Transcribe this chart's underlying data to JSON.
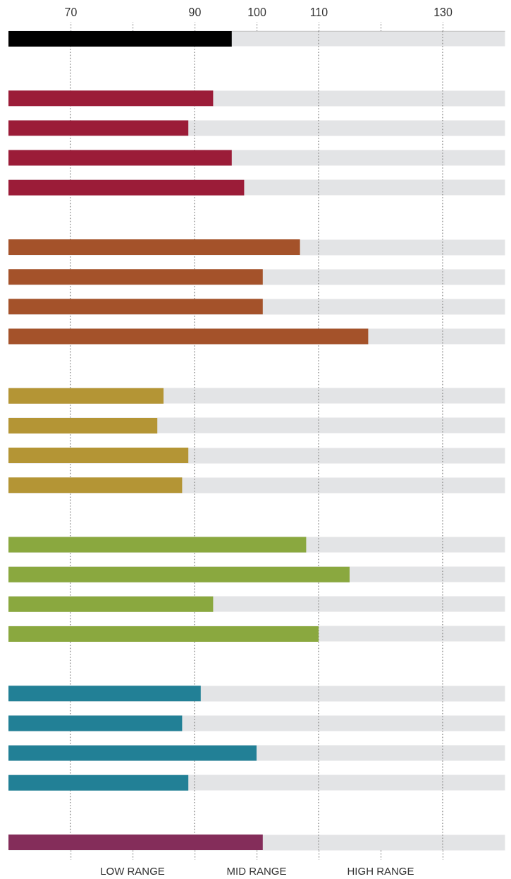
{
  "chart_data": {
    "type": "bar",
    "orientation": "horizontal",
    "grid": "y",
    "categories": [
      null,
      null,
      null,
      null,
      null,
      null,
      null,
      null,
      null,
      null,
      null,
      null,
      null,
      null,
      null,
      null,
      null,
      null,
      null,
      null,
      null,
      null,
      null,
      null,
      null,
      null,
      null,
      null
    ],
    "values": [
      96,
      null,
      93,
      89,
      96,
      98,
      null,
      107,
      101,
      101,
      118,
      null,
      85,
      84,
      89,
      88,
      null,
      108,
      115,
      93,
      110,
      null,
      91,
      88,
      100,
      89,
      null,
      101
    ],
    "colors": [
      "#000000",
      null,
      "#9b1c38",
      "#9b1c38",
      "#9b1c38",
      "#9b1c38",
      null,
      "#a4522a",
      "#a4522a",
      "#a4522a",
      "#a4522a",
      null,
      "#b49535",
      "#b49535",
      "#b49535",
      "#b49535",
      null,
      "#8aa83f",
      "#8aa83f",
      "#8aa83f",
      "#8aa83f",
      null,
      "#228096",
      "#228096",
      "#228096",
      "#228096",
      null,
      "#842d5a"
    ],
    "xlim": [
      60,
      140
    ],
    "xticks": [
      70,
      {
        "value": 80,
        "label": null
      },
      90,
      100,
      110,
      {
        "value": 120,
        "label": null
      },
      130
    ],
    "ref_lines": [
      {
        "axis": "x",
        "value": 70,
        "line_style": "dotted",
        "color": "#9b9b9b"
      },
      {
        "axis": "x",
        "value": 90,
        "line_style": "dotted",
        "color": "#9b9b9b"
      },
      {
        "axis": "x",
        "value": 110,
        "line_style": "dotted",
        "color": "#9b9b9b"
      },
      {
        "axis": "x",
        "value": 130,
        "line_style": "dotted",
        "color": "#9b9b9b"
      }
    ],
    "annotations": [
      "LOW RANGE",
      "MID RANGE",
      "HIGH RANGE"
    ]
  }
}
